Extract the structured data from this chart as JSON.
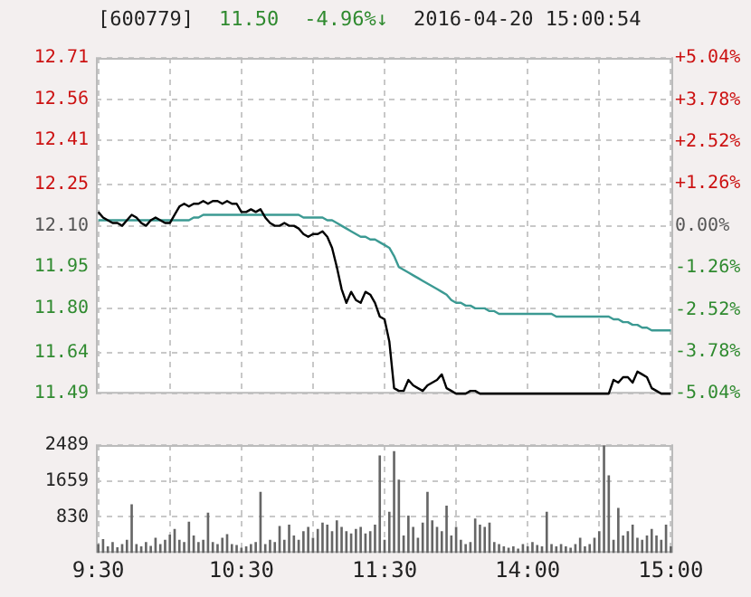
{
  "chart_data": [
    {
      "type": "line",
      "title": "[600779]",
      "annotations": [
        "11.50",
        "-4.96%↓",
        "2016-04-20 15:00:54"
      ],
      "categories": [
        null,
        null,
        null,
        null,
        null,
        null,
        null,
        null,
        null,
        null,
        null,
        null,
        null,
        null,
        null,
        null,
        null,
        null,
        null,
        null,
        null,
        null,
        null,
        null,
        null,
        null,
        null,
        null,
        null,
        null,
        null,
        null,
        null,
        null,
        null,
        null,
        null,
        null,
        null,
        null,
        null,
        null,
        null,
        null,
        null,
        null,
        null,
        null,
        null,
        null,
        null,
        null,
        null,
        null,
        null,
        null,
        null,
        null,
        null,
        null,
        null,
        null,
        null,
        null,
        null,
        null,
        null,
        null,
        null,
        null,
        null,
        null,
        null,
        null,
        null,
        null,
        null,
        null,
        null,
        null,
        null,
        null,
        null,
        null,
        null,
        null,
        null,
        null,
        null,
        null,
        null,
        null,
        null,
        null,
        null,
        null,
        null,
        null,
        null,
        null,
        null,
        null,
        null,
        null,
        null,
        null,
        null,
        null,
        null,
        null,
        null,
        null,
        null,
        null,
        null,
        null,
        null,
        null,
        null,
        null,
        null
      ],
      "series": [
        {
          "color": "#000000",
          "values": [
            12.15,
            12.13,
            12.12,
            12.11,
            12.11,
            12.1,
            12.12,
            12.14,
            12.13,
            12.11,
            12.1,
            12.12,
            12.13,
            12.12,
            12.11,
            12.11,
            12.14,
            12.17,
            12.18,
            12.17,
            12.18,
            12.18,
            12.19,
            12.18,
            12.19,
            12.19,
            12.18,
            12.19,
            12.18,
            12.18,
            12.15,
            12.15,
            12.16,
            12.15,
            12.16,
            12.13,
            12.11,
            12.1,
            12.1,
            12.11,
            12.1,
            12.1,
            12.09,
            12.07,
            12.06,
            12.07,
            12.07,
            12.08,
            12.06,
            12.02,
            11.95,
            11.87,
            11.82,
            11.86,
            11.83,
            11.82,
            11.86,
            11.85,
            11.82,
            11.77,
            11.76,
            11.68,
            11.51,
            11.5,
            11.5,
            11.54,
            11.52,
            11.51,
            11.5,
            11.52,
            11.53,
            11.54,
            11.56,
            11.51,
            11.5,
            11.49,
            11.49,
            11.49,
            11.5,
            11.5,
            11.49,
            11.49,
            11.49,
            11.49,
            11.49,
            11.49,
            11.49,
            11.49,
            11.49,
            11.49,
            11.49,
            11.49,
            11.49,
            11.49,
            11.49,
            11.49,
            11.49,
            11.49,
            11.49,
            11.49,
            11.49,
            11.49,
            11.49,
            11.49,
            11.49,
            11.49,
            11.49,
            11.49,
            11.54,
            11.53,
            11.55,
            11.55,
            11.53,
            11.57,
            11.56,
            11.55,
            11.51,
            11.5,
            11.49,
            11.49,
            11.49
          ]
        },
        {
          "color": "#3c9a93",
          "values": [
            12.12,
            12.12,
            12.12,
            12.12,
            12.12,
            12.12,
            12.12,
            12.12,
            12.12,
            12.12,
            12.12,
            12.12,
            12.12,
            12.12,
            12.12,
            12.12,
            12.12,
            12.12,
            12.12,
            12.12,
            12.13,
            12.13,
            12.14,
            12.14,
            12.14,
            12.14,
            12.14,
            12.14,
            12.14,
            12.14,
            12.14,
            12.14,
            12.14,
            12.14,
            12.14,
            12.14,
            12.14,
            12.14,
            12.14,
            12.14,
            12.14,
            12.14,
            12.14,
            12.13,
            12.13,
            12.13,
            12.13,
            12.13,
            12.12,
            12.12,
            12.11,
            12.1,
            12.09,
            12.08,
            12.07,
            12.06,
            12.06,
            12.05,
            12.05,
            12.04,
            12.03,
            12.02,
            11.99,
            11.95,
            11.94,
            11.93,
            11.92,
            11.91,
            11.9,
            11.89,
            11.88,
            11.87,
            11.86,
            11.85,
            11.83,
            11.82,
            11.82,
            11.81,
            11.81,
            11.8,
            11.8,
            11.8,
            11.79,
            11.79,
            11.78,
            11.78,
            11.78,
            11.78,
            11.78,
            11.78,
            11.78,
            11.78,
            11.78,
            11.78,
            11.78,
            11.78,
            11.77,
            11.77,
            11.77,
            11.77,
            11.77,
            11.77,
            11.77,
            11.77,
            11.77,
            11.77,
            11.77,
            11.77,
            11.76,
            11.76,
            11.75,
            11.75,
            11.74,
            11.74,
            11.73,
            11.73,
            11.72,
            11.72,
            11.72,
            11.72,
            11.72
          ]
        }
      ],
      "ylim": [
        11.49,
        12.71
      ],
      "yticks": [
        11.49,
        11.64,
        {
          "value": 11.8,
          "label": "11.80"
        },
        11.95,
        {
          "value": 12.1,
          "label": "12.10"
        },
        12.25,
        12.41,
        12.56,
        12.71
      ],
      "y2lim": [
        -5.04,
        5.04
      ],
      "y2ticks": [
        {
          "value": -5.04,
          "label": "-5.04%"
        },
        {
          "value": -3.78,
          "label": "-3.78%"
        },
        {
          "value": -2.52,
          "label": "-2.52%"
        },
        {
          "value": -1.26,
          "label": "-1.26%"
        },
        {
          "value": 0,
          "label": "0.00%"
        },
        {
          "value": 1.26,
          "label": "+1.26%"
        },
        {
          "value": 2.52,
          "label": "+2.52%"
        },
        {
          "value": 3.78,
          "label": "+3.78%"
        },
        {
          "value": 5.04,
          "label": "+5.04%"
        }
      ],
      "grid": true
    },
    {
      "type": "bar",
      "categories": [
        "9:30",
        null,
        null,
        null,
        null,
        null,
        null,
        null,
        null,
        null,
        null,
        null,
        null,
        null,
        null,
        null,
        null,
        null,
        null,
        null,
        null,
        null,
        null,
        null,
        null,
        null,
        null,
        null,
        null,
        null,
        "10:30",
        null,
        null,
        null,
        null,
        null,
        null,
        null,
        null,
        null,
        null,
        null,
        null,
        null,
        null,
        null,
        null,
        null,
        null,
        null,
        null,
        null,
        null,
        null,
        null,
        null,
        null,
        null,
        null,
        null,
        "11:30",
        null,
        null,
        null,
        null,
        null,
        null,
        null,
        null,
        null,
        null,
        null,
        null,
        null,
        null,
        null,
        null,
        null,
        null,
        null,
        null,
        null,
        null,
        null,
        null,
        null,
        null,
        null,
        null,
        null,
        "14:00",
        null,
        null,
        null,
        null,
        null,
        null,
        null,
        null,
        null,
        null,
        null,
        null,
        null,
        null,
        null,
        null,
        null,
        null,
        null,
        null,
        null,
        null,
        null,
        null,
        null,
        null,
        null,
        null,
        null,
        "15:00"
      ],
      "series": [
        {
          "color": "#666666",
          "values": [
            200,
            320,
            150,
            250,
            130,
            200,
            300,
            1120,
            200,
            150,
            250,
            160,
            350,
            200,
            300,
            420,
            550,
            300,
            250,
            720,
            400,
            250,
            300,
            930,
            250,
            200,
            350,
            430,
            200,
            180,
            120,
            150,
            200,
            250,
            1410,
            200,
            300,
            250,
            620,
            300,
            650,
            400,
            300,
            500,
            600,
            350,
            550,
            700,
            650,
            500,
            750,
            600,
            500,
            450,
            550,
            600,
            450,
            500,
            650,
            2250,
            300,
            950,
            2350,
            1690,
            400,
            860,
            600,
            350,
            700,
            1410,
            750,
            600,
            500,
            1090,
            400,
            600,
            300,
            200,
            250,
            790,
            650,
            600,
            700,
            250,
            200,
            150,
            120,
            150,
            100,
            200,
            150,
            250,
            180,
            150,
            950,
            200,
            150,
            200,
            150,
            120,
            200,
            350,
            150,
            200,
            350,
            500,
            2480,
            1790,
            300,
            1040,
            400,
            500,
            650,
            350,
            300,
            400,
            550,
            400,
            300,
            650,
            150
          ]
        }
      ],
      "ylim": [
        0,
        2489
      ],
      "yticks": [
        830,
        1659,
        2489
      ],
      "grid": true
    }
  ]
}
